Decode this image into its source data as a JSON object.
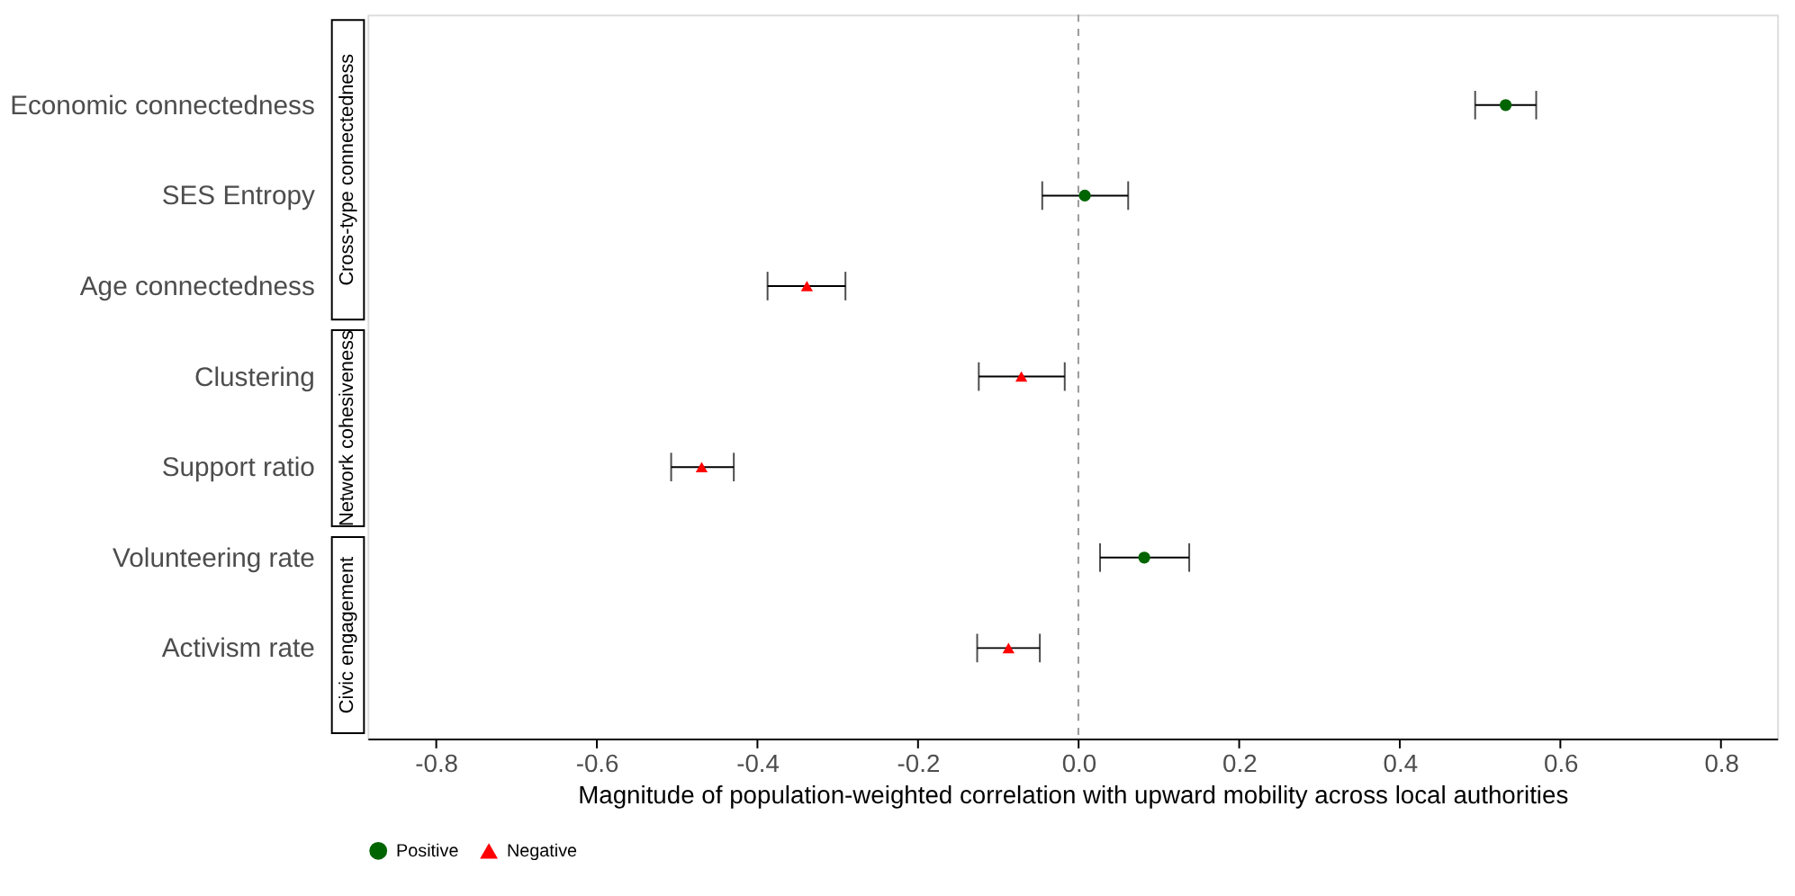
{
  "chart_data": {
    "type": "scatter",
    "orientation": "horizontal",
    "categories": [
      "Economic connectedness",
      "SES Entropy",
      "Age connectedness",
      "Clustering",
      "Support ratio",
      "Volunteering rate",
      "Activism rate"
    ],
    "xlabel": "Magnitude of population-weighted correlation with upward mobility across local authorities",
    "series": [
      {
        "name": "Positive",
        "color": "#006400",
        "marker": "circle",
        "values": [
          0.532,
          0.008,
          null,
          null,
          null,
          0.082,
          null
        ],
        "errors": [
          [
            0.494,
            0.57
          ],
          [
            -0.045,
            0.062
          ],
          null,
          null,
          null,
          [
            0.027,
            0.138
          ],
          null
        ]
      },
      {
        "name": "Negative",
        "color": "#ff0000",
        "marker": "triangle",
        "values": [
          null,
          null,
          -0.338,
          -0.071,
          -0.469,
          null,
          -0.087
        ],
        "errors": [
          null,
          null,
          [
            -0.387,
            -0.29
          ],
          [
            -0.124,
            -0.017
          ],
          [
            -0.507,
            -0.429
          ],
          null,
          [
            -0.126,
            -0.048
          ]
        ]
      }
    ],
    "xlim": [
      -0.885,
      0.87
    ],
    "xticks": [
      -0.8,
      -0.6,
      -0.4,
      -0.2,
      {
        "value": 0,
        "label": "0.0"
      },
      0.2,
      0.4,
      0.6,
      0.8
    ],
    "legend": "bottom",
    "ref_lines": [
      {
        "axis": "x",
        "value": 0,
        "color": "#999999",
        "line_style": "dashed"
      }
    ],
    "annotations": [
      "Cross-type connectedness",
      "Network cohesiveness",
      "Civic engagement"
    ]
  }
}
